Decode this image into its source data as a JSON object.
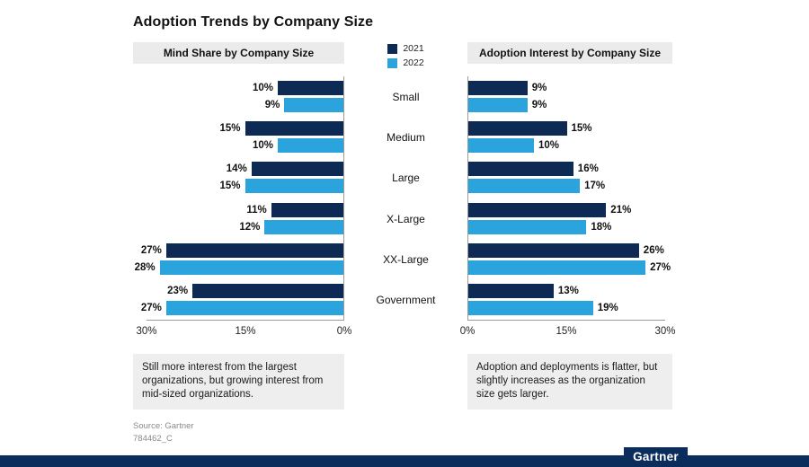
{
  "page_title": "Adoption Trends by Company Size",
  "legend": [
    {
      "label": "2021",
      "color": "#0d2a54"
    },
    {
      "label": "2022",
      "color": "#2ba3dc"
    }
  ],
  "chart_data": [
    {
      "type": "bar",
      "orientation": "horizontal_right_to_left",
      "title": "Mind Share by Company Size",
      "categories": [
        "Small",
        "Medium",
        "Large",
        "X-Large",
        "XX-Large",
        "Government"
      ],
      "series": [
        {
          "name": "2021",
          "color": "#0d2a54",
          "values": [
            10,
            15,
            14,
            11,
            27,
            23
          ]
        },
        {
          "name": "2022",
          "color": "#2ba3dc",
          "values": [
            9,
            10,
            15,
            12,
            28,
            27
          ]
        }
      ],
      "value_suffix": "%",
      "xlim": [
        0,
        30
      ],
      "ticks": [
        "30%",
        "15%",
        "0%"
      ],
      "grid": false,
      "annotation": "Still more interest from the largest organizations, but growing interest from mid-sized organizations."
    },
    {
      "type": "bar",
      "orientation": "horizontal_left_to_right",
      "title": "Adoption Interest by Company Size",
      "categories": [
        "Small",
        "Medium",
        "Large",
        "X-Large",
        "XX-Large",
        "Government"
      ],
      "series": [
        {
          "name": "2021",
          "color": "#0d2a54",
          "values": [
            9,
            15,
            16,
            21,
            26,
            13
          ]
        },
        {
          "name": "2022",
          "color": "#2ba3dc",
          "values": [
            9,
            10,
            17,
            18,
            27,
            19
          ]
        }
      ],
      "value_suffix": "%",
      "xlim": [
        0,
        30
      ],
      "ticks": [
        "0%",
        "15%",
        "30%"
      ],
      "grid": false,
      "annotation": "Adoption and deployments is flatter, but slightly increases as the organization size gets larger."
    }
  ],
  "source": {
    "line1": "Source: Gartner",
    "line2": "784462_C"
  },
  "footer": {
    "brand": "Gartner"
  }
}
